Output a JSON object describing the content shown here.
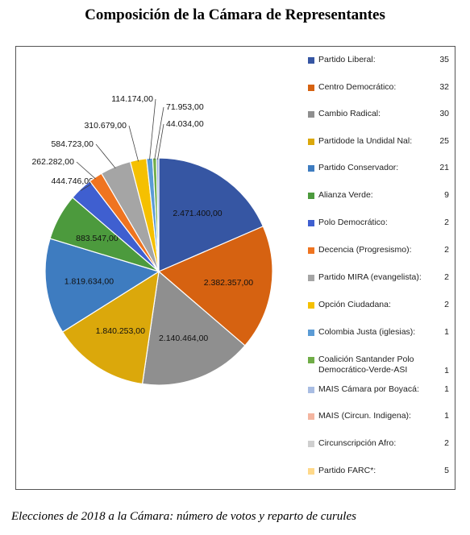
{
  "title": "Composición de la Cámara de Representantes",
  "caption": "Elecciones de 2018 a la Cámara: número de votos y reparto de curules",
  "chart_data": {
    "type": "pie",
    "title": "Composición de la Cámara de Representantes",
    "slices": [
      {
        "label": "2.471.400,00",
        "value": 2471400,
        "color": "#3656A3"
      },
      {
        "label": "2.382.357,00",
        "value": 2382357,
        "color": "#D66211"
      },
      {
        "label": "2.140.464,00",
        "value": 2140464,
        "color": "#8F8F8F"
      },
      {
        "label": "1.840.253,00",
        "value": 1840253,
        "color": "#DBA80B"
      },
      {
        "label": "1.819.634,00",
        "value": 1819634,
        "color": "#3E7CC0"
      },
      {
        "label": "883.547,00",
        "value": 883547,
        "color": "#4C9A3D"
      },
      {
        "label": "444.746,00",
        "value": 444746,
        "color": "#3F5FD0"
      },
      {
        "label": "262.282,00",
        "value": 262282,
        "color": "#EF7420"
      },
      {
        "label": "584.723,00",
        "value": 584723,
        "color": "#A5A5A5"
      },
      {
        "label": "310.679,00",
        "value": 310679,
        "color": "#F5C000"
      },
      {
        "label": "114.174,00",
        "value": 114174,
        "color": "#5B9BD5"
      },
      {
        "label": "71.953,00",
        "value": 71953,
        "color": "#70AD47"
      },
      {
        "label": "44.034,00",
        "value": 44034,
        "color": "#8EA9DB"
      }
    ],
    "legend": {
      "position": "right",
      "entries": [
        {
          "name": "Partido Liberal:",
          "seats": "35",
          "color": "#3656A3"
        },
        {
          "name": "Centro Democrático:",
          "seats": "32",
          "color": "#D66211"
        },
        {
          "name": "Cambio Radical:",
          "seats": "30",
          "color": "#8F8F8F"
        },
        {
          "name": "Partidode la Undidal Nal:",
          "seats": "25",
          "color": "#DBA80B"
        },
        {
          "name": "Partido Conservador:",
          "seats": "21",
          "color": "#3E7CC0"
        },
        {
          "name": "Alianza Verde:",
          "seats": "9",
          "color": "#4C9A3D"
        },
        {
          "name": "Polo Democrático:",
          "seats": "2",
          "color": "#3F5FD0"
        },
        {
          "name": "Decencia (Progresismo):",
          "seats": "2",
          "color": "#EF7420"
        },
        {
          "name": "Partido MIRA (evangelista):",
          "seats": "2",
          "color": "#A5A5A5"
        },
        {
          "name": "Opción Ciudadana:",
          "seats": "2",
          "color": "#F5C000"
        },
        {
          "name": "Colombia Justa (iglesias):",
          "seats": "1",
          "color": "#5B9BD5"
        },
        {
          "name": "Coalición Santander Polo Democrático-Verde-ASI",
          "seats": "1",
          "color": "#70AD47"
        },
        {
          "name": "MAIS Cámara por Boyacá:",
          "seats": "1",
          "color": "#A9BDE3"
        },
        {
          "name": "MAIS (Circun. Indigena):",
          "seats": "1",
          "color": "#F4B5A0"
        },
        {
          "name": "Circunscripción Afro:",
          "seats": "2",
          "color": "#CFCFCF"
        },
        {
          "name": "Partido FARC*:",
          "seats": "5",
          "color": "#FFD98A"
        }
      ]
    }
  }
}
